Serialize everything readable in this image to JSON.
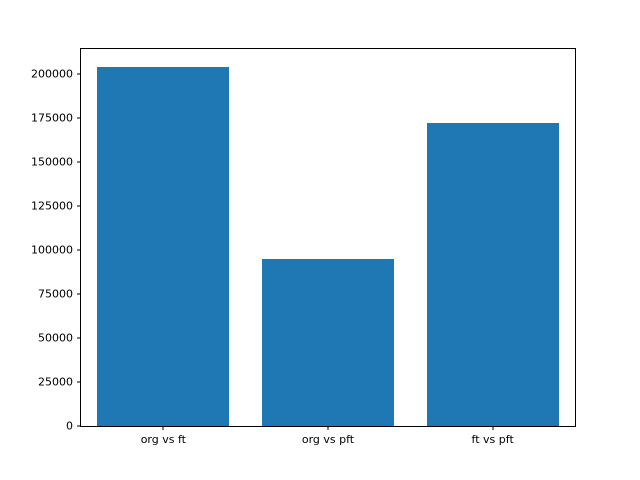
{
  "chart_data": {
    "type": "bar",
    "categories": [
      "org vs ft",
      "org vs pft",
      "ft vs pft"
    ],
    "values": [
      204000,
      95000,
      172000
    ],
    "title": "",
    "xlabel": "",
    "ylabel": "",
    "ylim": [
      0,
      214200
    ],
    "yticks": [
      0,
      25000,
      50000,
      75000,
      100000,
      125000,
      150000,
      175000,
      200000
    ],
    "bar_color": "#1f77b4",
    "axis_color": "#000000",
    "grid": false,
    "legend": false,
    "bar_width_fraction": 0.8
  }
}
